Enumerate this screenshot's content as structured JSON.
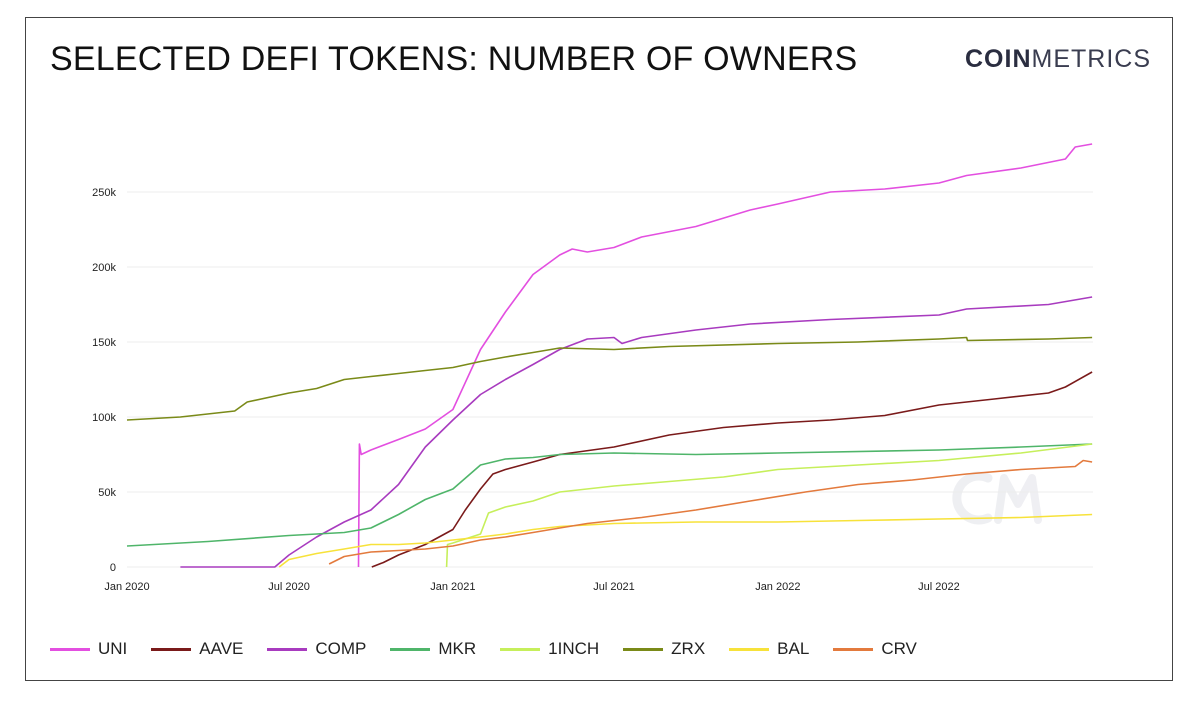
{
  "header": {
    "title": "SELECTED DEFI TOKENS: NUMBER OF OWNERS",
    "logo_bold": "COIN",
    "logo_light": "METRICS"
  },
  "colors": {
    "UNI": "#e34fe0",
    "AAVE": "#7a1a1a",
    "COMP": "#a83bbf",
    "MKR": "#4fb56a",
    "1INCH": "#c6ef5b",
    "ZRX": "#7a8a18",
    "BAL": "#f7e23a",
    "CRV": "#e37a3d"
  },
  "chart_data": {
    "type": "line",
    "title": "SELECTED DEFI TOKENS: NUMBER OF OWNERS",
    "xlabel": "",
    "ylabel": "",
    "x_ticks": [
      {
        "date": "2020-01-01",
        "label": "Jan 2020"
      },
      {
        "date": "2020-07-01",
        "label": "Jul 2020"
      },
      {
        "date": "2021-01-01",
        "label": "Jan 2021"
      },
      {
        "date": "2021-07-01",
        "label": "Jul 2021"
      },
      {
        "date": "2022-01-01",
        "label": "Jan 2022"
      },
      {
        "date": "2022-07-01",
        "label": "Jul 2022"
      }
    ],
    "y_ticks": [
      {
        "value": 0,
        "label": "0"
      },
      {
        "value": 50000,
        "label": "50k"
      },
      {
        "value": 100000,
        "label": "100k"
      },
      {
        "value": 150000,
        "label": "150k"
      },
      {
        "value": 200000,
        "label": "200k"
      },
      {
        "value": 250000,
        "label": "250k"
      }
    ],
    "xlim": [
      "2020-01-01",
      "2022-12-21"
    ],
    "ylim": [
      0,
      300000
    ],
    "grid": "horizontal",
    "legend_position": "bottom",
    "series": [
      {
        "name": "UNI",
        "points": [
          [
            "2020-09-17",
            0
          ],
          [
            "2020-09-18",
            82000
          ],
          [
            "2020-09-20",
            75000
          ],
          [
            "2020-10-01",
            78000
          ],
          [
            "2020-11-01",
            85000
          ],
          [
            "2020-12-01",
            92000
          ],
          [
            "2021-01-01",
            105000
          ],
          [
            "2021-02-01",
            145000
          ],
          [
            "2021-03-01",
            170000
          ],
          [
            "2021-04-01",
            195000
          ],
          [
            "2021-05-01",
            208000
          ],
          [
            "2021-05-15",
            212000
          ],
          [
            "2021-06-01",
            210000
          ],
          [
            "2021-07-01",
            213000
          ],
          [
            "2021-08-01",
            220000
          ],
          [
            "2021-10-01",
            227000
          ],
          [
            "2021-12-01",
            238000
          ],
          [
            "2022-01-01",
            242000
          ],
          [
            "2022-03-01",
            250000
          ],
          [
            "2022-05-01",
            252000
          ],
          [
            "2022-07-01",
            256000
          ],
          [
            "2022-08-01",
            261000
          ],
          [
            "2022-10-01",
            266000
          ],
          [
            "2022-11-20",
            272000
          ],
          [
            "2022-12-01",
            280000
          ],
          [
            "2022-12-20",
            282000
          ]
        ]
      },
      {
        "name": "AAVE",
        "points": [
          [
            "2020-10-02",
            0
          ],
          [
            "2020-10-15",
            3000
          ],
          [
            "2020-11-01",
            8000
          ],
          [
            "2020-12-01",
            15000
          ],
          [
            "2021-01-01",
            25000
          ],
          [
            "2021-01-15",
            38000
          ],
          [
            "2021-02-01",
            52000
          ],
          [
            "2021-02-15",
            62000
          ],
          [
            "2021-03-01",
            65000
          ],
          [
            "2021-04-01",
            70000
          ],
          [
            "2021-05-01",
            75000
          ],
          [
            "2021-07-01",
            80000
          ],
          [
            "2021-09-01",
            88000
          ],
          [
            "2021-11-01",
            93000
          ],
          [
            "2022-01-01",
            96000
          ],
          [
            "2022-03-01",
            98000
          ],
          [
            "2022-05-01",
            101000
          ],
          [
            "2022-07-01",
            108000
          ],
          [
            "2022-09-01",
            112000
          ],
          [
            "2022-11-01",
            116000
          ],
          [
            "2022-11-20",
            120000
          ],
          [
            "2022-12-20",
            130000
          ]
        ]
      },
      {
        "name": "COMP",
        "points": [
          [
            "2020-03-01",
            0
          ],
          [
            "2020-06-15",
            0
          ],
          [
            "2020-07-01",
            8000
          ],
          [
            "2020-08-01",
            20000
          ],
          [
            "2020-09-01",
            30000
          ],
          [
            "2020-10-01",
            38000
          ],
          [
            "2020-11-01",
            55000
          ],
          [
            "2020-12-01",
            80000
          ],
          [
            "2021-01-01",
            98000
          ],
          [
            "2021-02-01",
            115000
          ],
          [
            "2021-03-01",
            125000
          ],
          [
            "2021-04-01",
            135000
          ],
          [
            "2021-05-01",
            145000
          ],
          [
            "2021-06-01",
            152000
          ],
          [
            "2021-07-01",
            153000
          ],
          [
            "2021-07-10",
            149000
          ],
          [
            "2021-08-01",
            153000
          ],
          [
            "2021-10-01",
            158000
          ],
          [
            "2021-12-01",
            162000
          ],
          [
            "2022-03-01",
            165000
          ],
          [
            "2022-07-01",
            168000
          ],
          [
            "2022-08-01",
            172000
          ],
          [
            "2022-11-01",
            175000
          ],
          [
            "2022-12-20",
            180000
          ]
        ]
      },
      {
        "name": "MKR",
        "points": [
          [
            "2020-01-01",
            14000
          ],
          [
            "2020-04-01",
            17000
          ],
          [
            "2020-07-01",
            21000
          ],
          [
            "2020-09-01",
            23000
          ],
          [
            "2020-10-01",
            26000
          ],
          [
            "2020-11-01",
            35000
          ],
          [
            "2020-12-01",
            45000
          ],
          [
            "2021-01-01",
            52000
          ],
          [
            "2021-02-01",
            68000
          ],
          [
            "2021-03-01",
            72000
          ],
          [
            "2021-04-01",
            73000
          ],
          [
            "2021-05-01",
            75000
          ],
          [
            "2021-07-01",
            76000
          ],
          [
            "2021-10-01",
            75000
          ],
          [
            "2022-01-01",
            76000
          ],
          [
            "2022-07-01",
            78000
          ],
          [
            "2022-10-01",
            80000
          ],
          [
            "2022-12-20",
            82000
          ]
        ]
      },
      {
        "name": "1INCH",
        "points": [
          [
            "2020-12-25",
            0
          ],
          [
            "2020-12-26",
            15000
          ],
          [
            "2021-01-01",
            16000
          ],
          [
            "2021-02-01",
            22000
          ],
          [
            "2021-02-10",
            36000
          ],
          [
            "2021-03-01",
            40000
          ],
          [
            "2021-04-01",
            44000
          ],
          [
            "2021-05-01",
            50000
          ],
          [
            "2021-07-01",
            54000
          ],
          [
            "2021-09-01",
            57000
          ],
          [
            "2021-11-01",
            60000
          ],
          [
            "2022-01-01",
            65000
          ],
          [
            "2022-04-01",
            68000
          ],
          [
            "2022-07-01",
            71000
          ],
          [
            "2022-10-01",
            76000
          ],
          [
            "2022-12-20",
            82000
          ]
        ]
      },
      {
        "name": "ZRX",
        "points": [
          [
            "2020-01-01",
            98000
          ],
          [
            "2020-03-01",
            100000
          ],
          [
            "2020-05-01",
            104000
          ],
          [
            "2020-05-15",
            110000
          ],
          [
            "2020-07-01",
            116000
          ],
          [
            "2020-08-01",
            119000
          ],
          [
            "2020-09-01",
            125000
          ],
          [
            "2020-10-01",
            127000
          ],
          [
            "2020-11-01",
            129000
          ],
          [
            "2020-12-01",
            131000
          ],
          [
            "2021-01-01",
            133000
          ],
          [
            "2021-02-01",
            137000
          ],
          [
            "2021-03-01",
            140000
          ],
          [
            "2021-04-01",
            143000
          ],
          [
            "2021-05-01",
            146000
          ],
          [
            "2021-07-01",
            145000
          ],
          [
            "2021-09-01",
            147000
          ],
          [
            "2022-01-01",
            149000
          ],
          [
            "2022-04-01",
            150000
          ],
          [
            "2022-07-01",
            152000
          ],
          [
            "2022-08-01",
            153000
          ],
          [
            "2022-08-02",
            151000
          ],
          [
            "2022-11-01",
            152000
          ],
          [
            "2022-12-20",
            153000
          ]
        ]
      },
      {
        "name": "BAL",
        "points": [
          [
            "2020-06-20",
            0
          ],
          [
            "2020-07-01",
            5000
          ],
          [
            "2020-08-01",
            9000
          ],
          [
            "2020-09-01",
            12000
          ],
          [
            "2020-10-01",
            15000
          ],
          [
            "2020-11-01",
            15000
          ],
          [
            "2020-12-01",
            16000
          ],
          [
            "2021-01-01",
            18000
          ],
          [
            "2021-02-01",
            20000
          ],
          [
            "2021-03-01",
            22000
          ],
          [
            "2021-04-01",
            25000
          ],
          [
            "2021-05-01",
            27000
          ],
          [
            "2021-07-01",
            29000
          ],
          [
            "2021-10-01",
            30000
          ],
          [
            "2022-01-01",
            30000
          ],
          [
            "2022-04-01",
            31000
          ],
          [
            "2022-07-01",
            32000
          ],
          [
            "2022-10-01",
            33000
          ],
          [
            "2022-12-20",
            35000
          ]
        ]
      },
      {
        "name": "CRV",
        "points": [
          [
            "2020-08-15",
            2000
          ],
          [
            "2020-09-01",
            7000
          ],
          [
            "2020-10-01",
            10000
          ],
          [
            "2020-11-01",
            11000
          ],
          [
            "2020-12-01",
            12000
          ],
          [
            "2021-01-01",
            14000
          ],
          [
            "2021-02-01",
            18000
          ],
          [
            "2021-03-01",
            20000
          ],
          [
            "2021-04-01",
            23000
          ],
          [
            "2021-05-01",
            26000
          ],
          [
            "2021-06-01",
            29000
          ],
          [
            "2021-08-01",
            33000
          ],
          [
            "2021-10-01",
            38000
          ],
          [
            "2021-12-01",
            44000
          ],
          [
            "2022-02-01",
            50000
          ],
          [
            "2022-04-01",
            55000
          ],
          [
            "2022-06-01",
            58000
          ],
          [
            "2022-08-01",
            62000
          ],
          [
            "2022-10-01",
            65000
          ],
          [
            "2022-12-01",
            67000
          ],
          [
            "2022-12-10",
            71000
          ],
          [
            "2022-12-20",
            70000
          ]
        ]
      }
    ]
  }
}
